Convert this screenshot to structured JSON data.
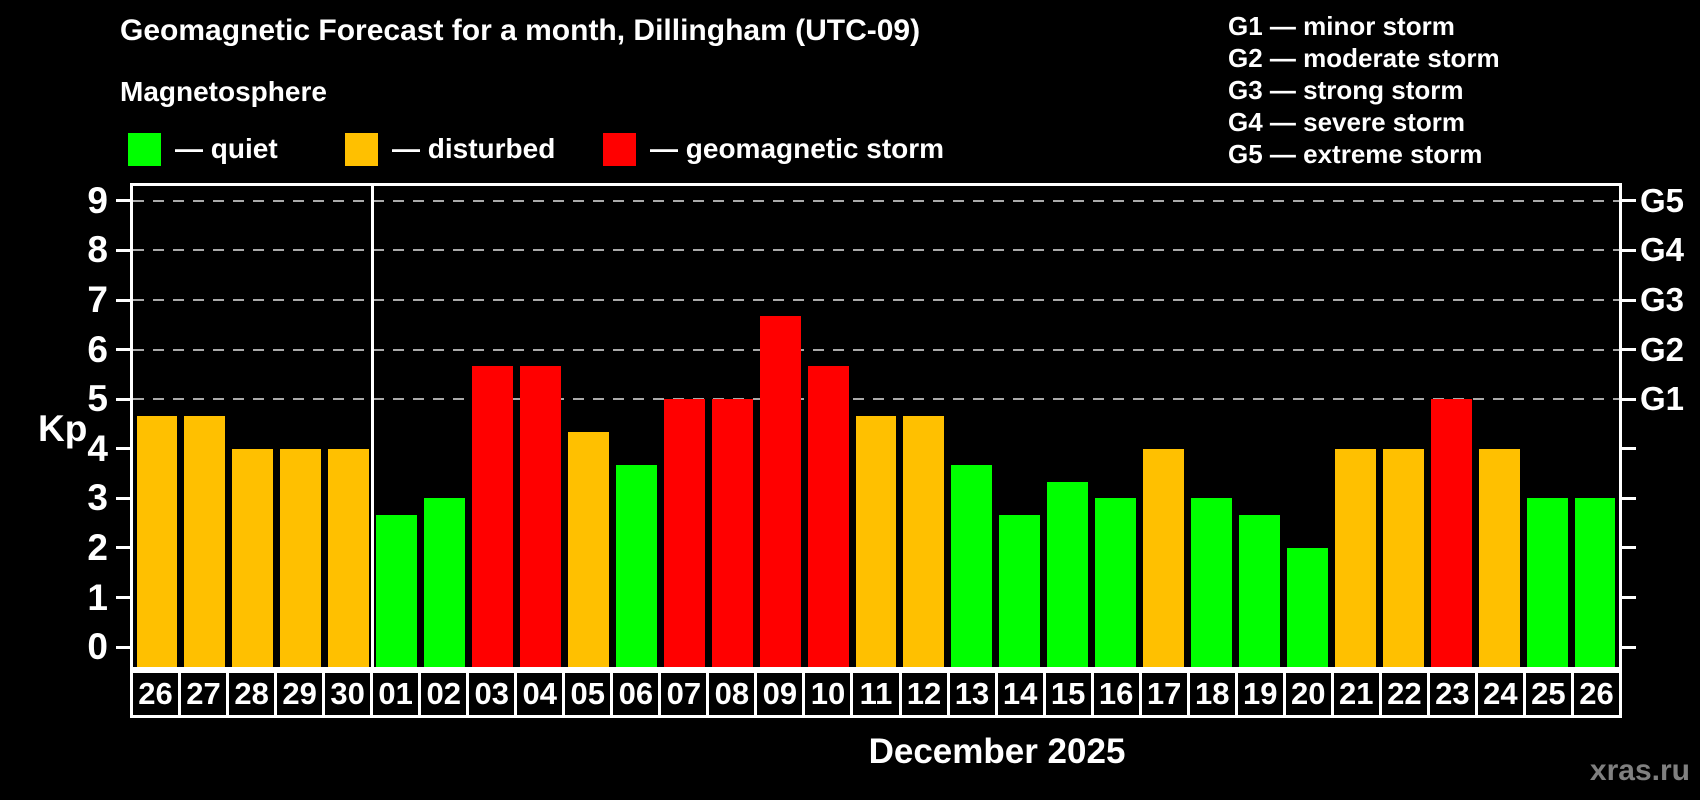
{
  "title": "Geomagnetic Forecast for a month, Dillingham (UTC-09)",
  "subtitle": "Magnetosphere",
  "legend": {
    "quiet_label": "— quiet",
    "disturbed_label": "— disturbed",
    "storm_label": "— geomagnetic storm"
  },
  "g_legend": {
    "items": [
      "G1 — minor storm",
      "G2 — moderate storm",
      "G3 — strong storm",
      "G4 — severe storm",
      "G5 — extreme storm"
    ]
  },
  "colors": {
    "quiet": "#00ff00",
    "disturbed": "#ffc000",
    "storm": "#ff0000",
    "axis": "#ffffff",
    "grid": "#aaaaaa",
    "watermark": "#808080"
  },
  "axis": {
    "y_label": "Kp",
    "y_ticks": [
      0,
      1,
      2,
      3,
      4,
      5,
      6,
      7,
      8,
      9
    ],
    "g_labels": [
      {
        "label": "G1",
        "kp": 5
      },
      {
        "label": "G2",
        "kp": 6
      },
      {
        "label": "G3",
        "kp": 7
      },
      {
        "label": "G4",
        "kp": 8
      },
      {
        "label": "G5",
        "kp": 9
      }
    ],
    "month_label": "December 2025",
    "watermark": "xras.ru"
  },
  "chart_data": {
    "type": "bar",
    "title": "Geomagnetic Forecast for a month, Dillingham (UTC-09)",
    "xlabel": "December 2025",
    "ylabel": "Kp",
    "ylim": [
      0,
      9
    ],
    "grid_levels_kp": [
      5,
      6,
      7,
      8,
      9
    ],
    "legend_position": "top-left",
    "prev_month_days_count": 5,
    "days": [
      {
        "day": "26",
        "kp": 4.67,
        "status": "disturbed"
      },
      {
        "day": "27",
        "kp": 4.67,
        "status": "disturbed"
      },
      {
        "day": "28",
        "kp": 4,
        "status": "disturbed"
      },
      {
        "day": "29",
        "kp": 4,
        "status": "disturbed"
      },
      {
        "day": "30",
        "kp": 4,
        "status": "disturbed"
      },
      {
        "day": "01",
        "kp": 2.67,
        "status": "quiet"
      },
      {
        "day": "02",
        "kp": 3,
        "status": "quiet"
      },
      {
        "day": "03",
        "kp": 5.67,
        "status": "storm"
      },
      {
        "day": "04",
        "kp": 5.67,
        "status": "storm"
      },
      {
        "day": "05",
        "kp": 4.33,
        "status": "disturbed"
      },
      {
        "day": "06",
        "kp": 3.67,
        "status": "quiet"
      },
      {
        "day": "07",
        "kp": 5,
        "status": "storm"
      },
      {
        "day": "08",
        "kp": 5,
        "status": "storm"
      },
      {
        "day": "09",
        "kp": 6.67,
        "status": "storm"
      },
      {
        "day": "10",
        "kp": 5.67,
        "status": "storm"
      },
      {
        "day": "11",
        "kp": 4.67,
        "status": "disturbed"
      },
      {
        "day": "12",
        "kp": 4.67,
        "status": "disturbed"
      },
      {
        "day": "13",
        "kp": 3.67,
        "status": "quiet"
      },
      {
        "day": "14",
        "kp": 2.67,
        "status": "quiet"
      },
      {
        "day": "15",
        "kp": 3.33,
        "status": "quiet"
      },
      {
        "day": "16",
        "kp": 3,
        "status": "quiet"
      },
      {
        "day": "17",
        "kp": 4,
        "status": "disturbed"
      },
      {
        "day": "18",
        "kp": 3,
        "status": "quiet"
      },
      {
        "day": "19",
        "kp": 2.67,
        "status": "quiet"
      },
      {
        "day": "20",
        "kp": 2,
        "status": "quiet"
      },
      {
        "day": "21",
        "kp": 4,
        "status": "disturbed"
      },
      {
        "day": "22",
        "kp": 4,
        "status": "disturbed"
      },
      {
        "day": "23",
        "kp": 5,
        "status": "storm"
      },
      {
        "day": "24",
        "kp": 4,
        "status": "disturbed"
      },
      {
        "day": "25",
        "kp": 3,
        "status": "quiet"
      },
      {
        "day": "26",
        "kp": 3,
        "status": "quiet"
      }
    ]
  }
}
